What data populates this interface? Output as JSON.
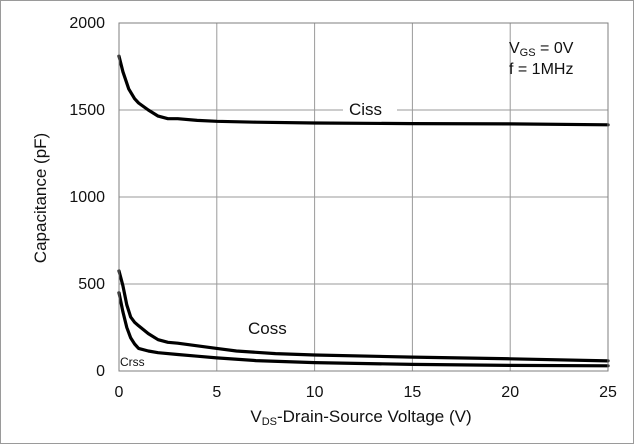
{
  "chart_data": {
    "type": "line",
    "xlabel_prefix": "V",
    "xlabel_sub": "DS",
    "xlabel_rest": "-Drain-Source Voltage (V)",
    "ylabel": "Capacitance (pF)",
    "xlim": [
      0,
      25
    ],
    "ylim": [
      0,
      2000
    ],
    "xticks": [
      0,
      5,
      10,
      15,
      20,
      25
    ],
    "yticks": [
      0,
      500,
      1000,
      1500,
      2000
    ],
    "grid": true,
    "conditions": {
      "vgs_prefix": "V",
      "vgs_sub": "GS",
      "vgs_rest": " = 0V",
      "freq": "f = 1MHz"
    },
    "series": [
      {
        "name": "Ciss",
        "x": [
          0,
          0.2,
          0.5,
          0.8,
          1,
          1.5,
          2,
          2.5,
          3,
          4,
          5,
          7,
          10,
          15,
          20,
          25
        ],
        "y": [
          1810,
          1720,
          1620,
          1565,
          1540,
          1500,
          1465,
          1450,
          1450,
          1440,
          1435,
          1430,
          1425,
          1422,
          1420,
          1415
        ]
      },
      {
        "name": "Coss",
        "x": [
          0,
          0.2,
          0.4,
          0.6,
          0.8,
          1,
          1.5,
          2,
          2.5,
          3,
          4,
          5,
          6,
          8,
          10,
          15,
          20,
          25
        ],
        "y": [
          575,
          490,
          380,
          310,
          280,
          260,
          215,
          180,
          165,
          160,
          145,
          130,
          115,
          100,
          92,
          80,
          70,
          58
        ]
      },
      {
        "name": "Crss",
        "x": [
          0,
          0.2,
          0.4,
          0.6,
          0.8,
          1,
          1.5,
          2,
          3,
          4,
          5,
          7,
          10,
          15,
          20,
          25
        ],
        "y": [
          450,
          340,
          250,
          190,
          155,
          130,
          115,
          105,
          95,
          85,
          75,
          60,
          48,
          38,
          32,
          30
        ]
      }
    ],
    "series_labels": [
      "Ciss",
      "Coss",
      "Crss"
    ]
  }
}
